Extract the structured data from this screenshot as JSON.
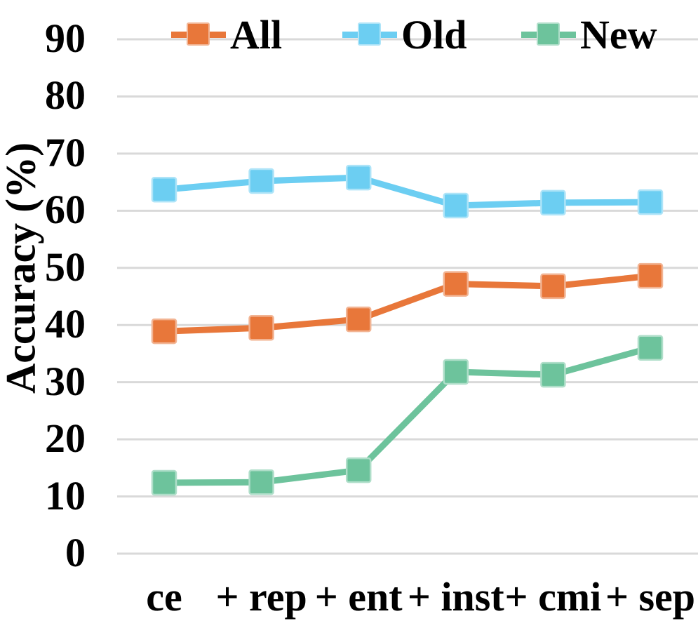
{
  "chart_data": {
    "type": "line",
    "title": "",
    "xlabel": "",
    "ylabel": "Accuracy (%)",
    "ylim": [
      0,
      90
    ],
    "y_ticks": [
      0,
      10,
      20,
      30,
      40,
      50,
      60,
      70,
      80,
      90
    ],
    "grid": true,
    "legend_position": "top",
    "categories": [
      "ce",
      "+ rep",
      "+ ent",
      "+ inst",
      "+ cmi",
      "+ sep"
    ],
    "series": [
      {
        "name": "All",
        "color": "#E8773A",
        "marker": "square",
        "values": [
          38.9,
          39.5,
          41.0,
          47.2,
          46.8,
          48.6
        ]
      },
      {
        "name": "Old",
        "color": "#6CCEF2",
        "marker": "square",
        "values": [
          63.7,
          65.2,
          65.8,
          60.9,
          61.4,
          61.5
        ]
      },
      {
        "name": "New",
        "color": "#6DC39C",
        "marker": "square",
        "values": [
          12.4,
          12.5,
          14.6,
          31.8,
          31.3,
          36.0
        ]
      }
    ],
    "gridline_color": "#D9D9D9",
    "text_color": "#000000"
  }
}
